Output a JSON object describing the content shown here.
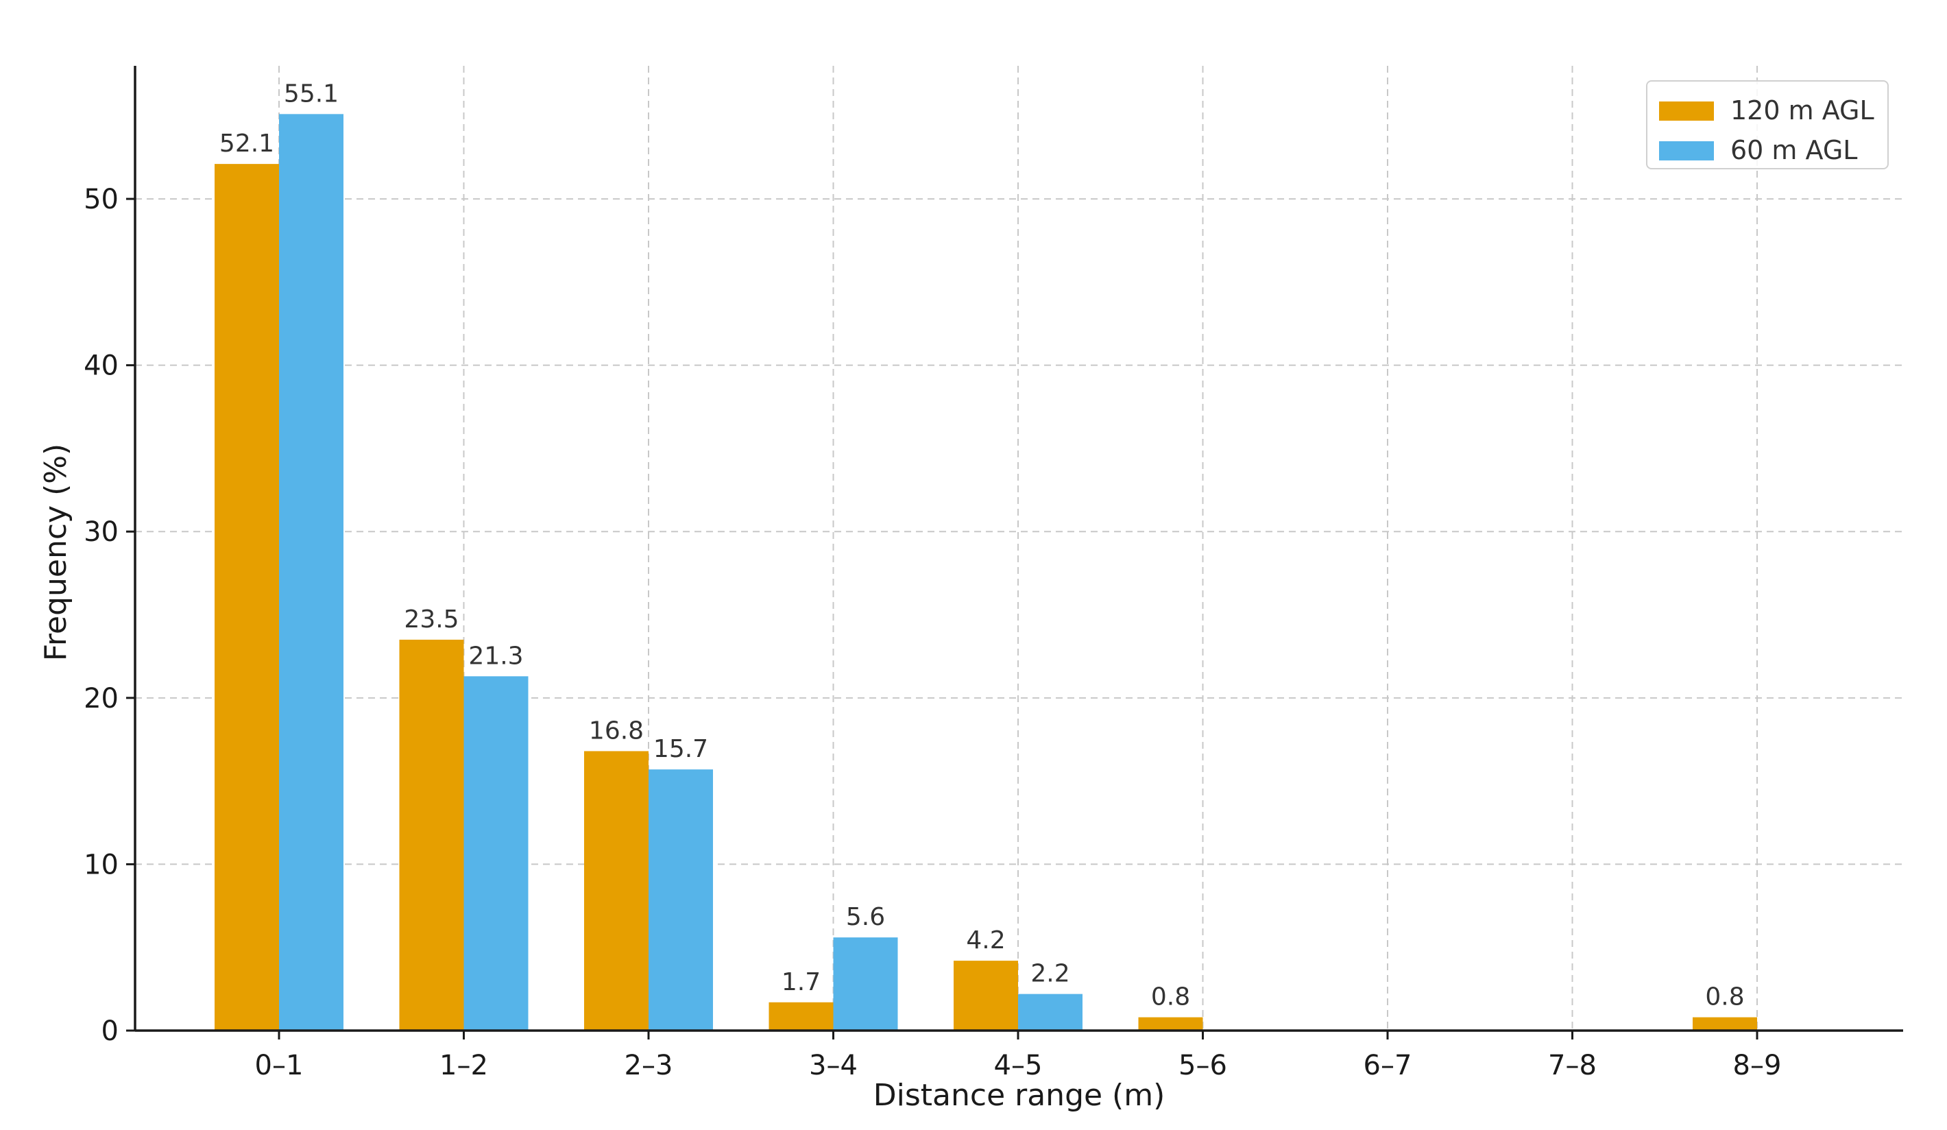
{
  "chart_data": {
    "type": "bar",
    "categories": [
      "0–1",
      "1–2",
      "2–3",
      "3–4",
      "4–5",
      "5–6",
      "6–7",
      "7–8",
      "8–9"
    ],
    "series": [
      {
        "name": "120 m AGL",
        "color": "#E69F00",
        "values": [
          52.1,
          23.5,
          16.8,
          1.7,
          4.2,
          0.8,
          0,
          0,
          0.8
        ],
        "labels": [
          "52.1",
          "23.5",
          "16.8",
          "1.7",
          "4.2",
          "0.8",
          "",
          "",
          "0.8"
        ]
      },
      {
        "name": "60 m AGL",
        "color": "#56B4E9",
        "values": [
          55.1,
          21.3,
          15.7,
          5.6,
          2.2,
          0,
          0,
          0,
          0
        ],
        "labels": [
          "55.1",
          "21.3",
          "15.7",
          "5.6",
          "2.2",
          "",
          "",
          "",
          ""
        ]
      }
    ],
    "xlabel": "Distance range (m)",
    "ylabel": "Frequency (%)",
    "ylim": [
      0,
      58
    ],
    "yticks": [
      0,
      10,
      20,
      30,
      40,
      50
    ],
    "grid": true,
    "legend_position": "top-right"
  }
}
